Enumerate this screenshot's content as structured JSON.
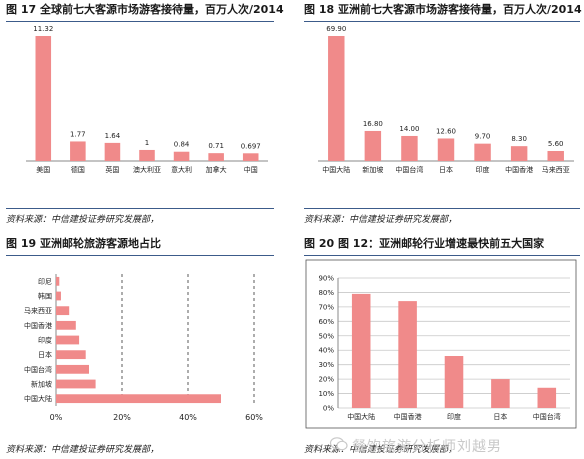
{
  "panels": {
    "p17": {
      "title": "图 17 全球前七大客源市场游客接待量，百万人次/2014",
      "source": "资料来源：中信建投证券研究发展部，"
    },
    "p18": {
      "title": "图 18 亚洲前七大客源市场游客接待量，百万人次/2014",
      "source": "资料来源：中信建投证券研究发展部，"
    },
    "p19": {
      "title": "图 19 亚洲邮轮旅游客源地占比",
      "source": "资料来源：中信建投证券研究发展部，"
    },
    "p20": {
      "title": "图 20 图 12：亚洲邮轮行业增速最快前五大国家",
      "source": "资料来源：中信建投证券研究发展部，"
    }
  },
  "watermark": "餐饮旅游分析师刘越男",
  "colors": {
    "bar": "#f08a8a",
    "rule": "#3c5b8a"
  },
  "chart_data": [
    {
      "id": "p17",
      "type": "bar",
      "title": "图 17 全球前七大客源市场游客接待量，百万人次/2014",
      "categories": [
        "美国",
        "德国",
        "英国",
        "澳大利亚",
        "意大利",
        "加拿大",
        "中国"
      ],
      "values": [
        11.32,
        1.77,
        1.64,
        1,
        0.84,
        0.71,
        0.697
      ],
      "value_labels": [
        "11.32",
        "1.77",
        "1.64",
        "1",
        "0.84",
        "0.71",
        "0.697"
      ],
      "ylim": [
        0,
        11.32
      ],
      "grid": false
    },
    {
      "id": "p18",
      "type": "bar",
      "title": "图 18 亚洲前七大客源市场游客接待量，百万人次/2014",
      "categories": [
        "中国大陆",
        "新加坡",
        "中国台湾",
        "日本",
        "印度",
        "中国香港",
        "马来西亚"
      ],
      "values": [
        69.9,
        16.8,
        14,
        12.6,
        9.7,
        8.3,
        5.6
      ],
      "value_labels": [
        "69.90",
        "16.80",
        "14.00",
        "12.60",
        "9.70",
        "8.30",
        "5.60"
      ],
      "ylim": [
        0,
        69.9
      ],
      "grid": false
    },
    {
      "id": "p19",
      "type": "bar",
      "orientation": "horizontal",
      "title": "图 19 亚洲邮轮旅游客源地占比",
      "categories": [
        "印尼",
        "韩国",
        "马来西亚",
        "中国香港",
        "印度",
        "日本",
        "中国台湾",
        "新加坡",
        "中国大陆"
      ],
      "values": [
        0.01,
        0.015,
        0.04,
        0.06,
        0.07,
        0.09,
        0.1,
        0.12,
        0.5
      ],
      "xticks": [
        "0%",
        "20%",
        "40%",
        "60%"
      ],
      "xlim": [
        0,
        0.6
      ],
      "grid": "vertical dashed"
    },
    {
      "id": "p20",
      "type": "bar",
      "title": "图 20 图 12：亚洲邮轮行业增速最快前五大国家",
      "categories": [
        "中国大陆",
        "中国香港",
        "印度",
        "日本",
        "中国台湾"
      ],
      "values": [
        0.79,
        0.74,
        0.36,
        0.2,
        0.14
      ],
      "yticks": [
        "0%",
        "10%",
        "20%",
        "30%",
        "40%",
        "50%",
        "60%",
        "70%",
        "80%",
        "90%"
      ],
      "ylim": [
        0,
        0.9
      ],
      "grid": "horizontal"
    }
  ]
}
